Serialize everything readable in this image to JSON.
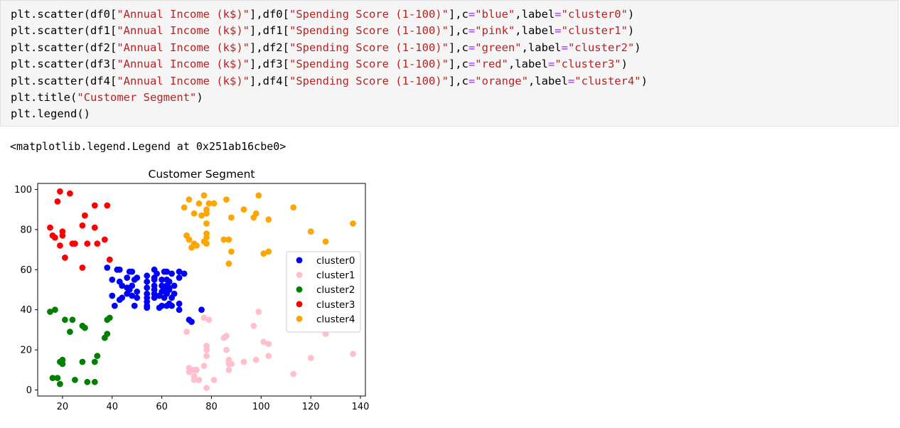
{
  "code": {
    "lines": [
      [
        {
          "t": "plt",
          "c": "t-var"
        },
        {
          "t": ".",
          "c": "t-punc"
        },
        {
          "t": "scatter",
          "c": "t-fn"
        },
        {
          "t": "(df0[",
          "c": "t-punc"
        },
        {
          "t": "\"Annual Income (k$)\"",
          "c": "t-str"
        },
        {
          "t": "],df0[",
          "c": "t-punc"
        },
        {
          "t": "\"Spending Score (1-100)\"",
          "c": "t-str"
        },
        {
          "t": "],c",
          "c": "t-punc"
        },
        {
          "t": "=",
          "c": "t-op"
        },
        {
          "t": "\"blue\"",
          "c": "t-str"
        },
        {
          "t": ",label",
          "c": "t-punc"
        },
        {
          "t": "=",
          "c": "t-op"
        },
        {
          "t": "\"cluster0\"",
          "c": "t-str"
        },
        {
          "t": ")",
          "c": "t-punc"
        }
      ],
      [
        {
          "t": "plt",
          "c": "t-var"
        },
        {
          "t": ".",
          "c": "t-punc"
        },
        {
          "t": "scatter",
          "c": "t-fn"
        },
        {
          "t": "(df1[",
          "c": "t-punc"
        },
        {
          "t": "\"Annual Income (k$)\"",
          "c": "t-str"
        },
        {
          "t": "],df1[",
          "c": "t-punc"
        },
        {
          "t": "\"Spending Score (1-100)\"",
          "c": "t-str"
        },
        {
          "t": "],c",
          "c": "t-punc"
        },
        {
          "t": "=",
          "c": "t-op"
        },
        {
          "t": "\"pink\"",
          "c": "t-str"
        },
        {
          "t": ",label",
          "c": "t-punc"
        },
        {
          "t": "=",
          "c": "t-op"
        },
        {
          "t": "\"cluster1\"",
          "c": "t-str"
        },
        {
          "t": ")",
          "c": "t-punc"
        }
      ],
      [
        {
          "t": "plt",
          "c": "t-var"
        },
        {
          "t": ".",
          "c": "t-punc"
        },
        {
          "t": "scatter",
          "c": "t-fn"
        },
        {
          "t": "(df2[",
          "c": "t-punc"
        },
        {
          "t": "\"Annual Income (k$)\"",
          "c": "t-str"
        },
        {
          "t": "],df2[",
          "c": "t-punc"
        },
        {
          "t": "\"Spending Score (1-100)\"",
          "c": "t-str"
        },
        {
          "t": "],c",
          "c": "t-punc"
        },
        {
          "t": "=",
          "c": "t-op"
        },
        {
          "t": "\"green\"",
          "c": "t-str"
        },
        {
          "t": ",label",
          "c": "t-punc"
        },
        {
          "t": "=",
          "c": "t-op"
        },
        {
          "t": "\"cluster2\"",
          "c": "t-str"
        },
        {
          "t": ")",
          "c": "t-punc"
        }
      ],
      [
        {
          "t": "plt",
          "c": "t-var"
        },
        {
          "t": ".",
          "c": "t-punc"
        },
        {
          "t": "scatter",
          "c": "t-fn"
        },
        {
          "t": "(df3[",
          "c": "t-punc"
        },
        {
          "t": "\"Annual Income (k$)\"",
          "c": "t-str"
        },
        {
          "t": "],df3[",
          "c": "t-punc"
        },
        {
          "t": "\"Spending Score (1-100)\"",
          "c": "t-str"
        },
        {
          "t": "],c",
          "c": "t-punc"
        },
        {
          "t": "=",
          "c": "t-op"
        },
        {
          "t": "\"red\"",
          "c": "t-str"
        },
        {
          "t": ",label",
          "c": "t-punc"
        },
        {
          "t": "=",
          "c": "t-op"
        },
        {
          "t": "\"cluster3\"",
          "c": "t-str"
        },
        {
          "t": ")",
          "c": "t-punc"
        }
      ],
      [
        {
          "t": "plt",
          "c": "t-var"
        },
        {
          "t": ".",
          "c": "t-punc"
        },
        {
          "t": "scatter",
          "c": "t-fn"
        },
        {
          "t": "(df4[",
          "c": "t-punc"
        },
        {
          "t": "\"Annual Income (k$)\"",
          "c": "t-str"
        },
        {
          "t": "],df4[",
          "c": "t-punc"
        },
        {
          "t": "\"Spending Score (1-100)\"",
          "c": "t-str"
        },
        {
          "t": "],c",
          "c": "t-punc"
        },
        {
          "t": "=",
          "c": "t-op"
        },
        {
          "t": "\"orange\"",
          "c": "t-str"
        },
        {
          "t": ",label",
          "c": "t-punc"
        },
        {
          "t": "=",
          "c": "t-op"
        },
        {
          "t": "\"cluster4\"",
          "c": "t-str"
        },
        {
          "t": ")",
          "c": "t-punc"
        }
      ],
      [
        {
          "t": "plt",
          "c": "t-var"
        },
        {
          "t": ".",
          "c": "t-punc"
        },
        {
          "t": "title",
          "c": "t-fn"
        },
        {
          "t": "(",
          "c": "t-punc"
        },
        {
          "t": "\"Customer Segment\"",
          "c": "t-str"
        },
        {
          "t": ")",
          "c": "t-punc"
        }
      ],
      [
        {
          "t": "plt",
          "c": "t-var"
        },
        {
          "t": ".",
          "c": "t-punc"
        },
        {
          "t": "legend",
          "c": "t-fn"
        },
        {
          "t": "()",
          "c": "t-punc"
        }
      ]
    ]
  },
  "output": {
    "text": "<matplotlib.legend.Legend at 0x251ab16cbe0>"
  },
  "chart_data": {
    "type": "scatter",
    "title": "Customer Segment",
    "xlabel": "",
    "ylabel": "",
    "xlim": [
      10,
      142
    ],
    "ylim": [
      -3,
      103
    ],
    "xticks": [
      20,
      40,
      60,
      80,
      100,
      120,
      140
    ],
    "yticks": [
      0,
      20,
      40,
      60,
      80,
      100
    ],
    "grid": false,
    "legend_position": "center-right",
    "series": [
      {
        "name": "cluster0",
        "color": "#0000ff",
        "points": [
          [
            38,
            61
          ],
          [
            40,
            55
          ],
          [
            40,
            47
          ],
          [
            41,
            42
          ],
          [
            42,
            60
          ],
          [
            43,
            60
          ],
          [
            43,
            54
          ],
          [
            43,
            45
          ],
          [
            44,
            46
          ],
          [
            44,
            52
          ],
          [
            46,
            56
          ],
          [
            46,
            51
          ],
          [
            46,
            48
          ],
          [
            47,
            59
          ],
          [
            47,
            50
          ],
          [
            48,
            59
          ],
          [
            48,
            52
          ],
          [
            48,
            47
          ],
          [
            49,
            55
          ],
          [
            49,
            42
          ],
          [
            50,
            56
          ],
          [
            50,
            49
          ],
          [
            50,
            46
          ],
          [
            54,
            57
          ],
          [
            54,
            54
          ],
          [
            54,
            51
          ],
          [
            54,
            48
          ],
          [
            54,
            46
          ],
          [
            54,
            44
          ],
          [
            54,
            42
          ],
          [
            54,
            41
          ],
          [
            57,
            60
          ],
          [
            57,
            56
          ],
          [
            57,
            55
          ],
          [
            57,
            52
          ],
          [
            57,
            50
          ],
          [
            57,
            48
          ],
          [
            57,
            46
          ],
          [
            58,
            58
          ],
          [
            59,
            47
          ],
          [
            59,
            41
          ],
          [
            60,
            55
          ],
          [
            60,
            52
          ],
          [
            60,
            49
          ],
          [
            60,
            42
          ],
          [
            61,
            59
          ],
          [
            61,
            50
          ],
          [
            61,
            46
          ],
          [
            62,
            59
          ],
          [
            62,
            55
          ],
          [
            62,
            52
          ],
          [
            62,
            48
          ],
          [
            62,
            42
          ],
          [
            63,
            54
          ],
          [
            63,
            51
          ],
          [
            63,
            50
          ],
          [
            63,
            43
          ],
          [
            64,
            58
          ],
          [
            64,
            46
          ],
          [
            64,
            42
          ],
          [
            65,
            52
          ],
          [
            65,
            48
          ],
          [
            67,
            59
          ],
          [
            67,
            56
          ],
          [
            67,
            43
          ],
          [
            67,
            40
          ],
          [
            69,
            58
          ],
          [
            71,
            35
          ],
          [
            72,
            34
          ],
          [
            76,
            40
          ]
        ]
      },
      {
        "name": "cluster1",
        "color": "#ffc0cb",
        "points": [
          [
            70,
            29
          ],
          [
            71,
            11
          ],
          [
            71,
            9
          ],
          [
            73,
            5
          ],
          [
            73,
            7
          ],
          [
            73,
            10
          ],
          [
            74,
            10
          ],
          [
            75,
            5
          ],
          [
            77,
            12
          ],
          [
            77,
            36
          ],
          [
            78,
            1
          ],
          [
            78,
            17
          ],
          [
            78,
            20
          ],
          [
            78,
            22
          ],
          [
            79,
            35
          ],
          [
            81,
            5
          ],
          [
            85,
            26
          ],
          [
            86,
            20
          ],
          [
            86,
            27
          ],
          [
            87,
            10
          ],
          [
            87,
            13
          ],
          [
            87,
            15
          ],
          [
            88,
            13
          ],
          [
            93,
            14
          ],
          [
            97,
            32
          ],
          [
            98,
            15
          ],
          [
            99,
            39
          ],
          [
            101,
            24
          ],
          [
            103,
            17
          ],
          [
            103,
            23
          ],
          [
            113,
            8
          ],
          [
            120,
            16
          ],
          [
            126,
            28
          ],
          [
            137,
            18
          ]
        ]
      },
      {
        "name": "cluster2",
        "color": "#008000",
        "points": [
          [
            15,
            39
          ],
          [
            16,
            6
          ],
          [
            17,
            40
          ],
          [
            18,
            6
          ],
          [
            19,
            3
          ],
          [
            19,
            14
          ],
          [
            20,
            13
          ],
          [
            20,
            15
          ],
          [
            21,
            35
          ],
          [
            23,
            29
          ],
          [
            24,
            35
          ],
          [
            25,
            5
          ],
          [
            28,
            14
          ],
          [
            28,
            32
          ],
          [
            29,
            31
          ],
          [
            30,
            4
          ],
          [
            33,
            4
          ],
          [
            33,
            14
          ],
          [
            34,
            17
          ],
          [
            37,
            26
          ],
          [
            38,
            35
          ],
          [
            38,
            28
          ],
          [
            39,
            36
          ]
        ]
      },
      {
        "name": "cluster3",
        "color": "#ff0000",
        "points": [
          [
            15,
            81
          ],
          [
            16,
            77
          ],
          [
            17,
            76
          ],
          [
            18,
            94
          ],
          [
            19,
            72
          ],
          [
            19,
            99
          ],
          [
            20,
            77
          ],
          [
            20,
            79
          ],
          [
            21,
            66
          ],
          [
            23,
            98
          ],
          [
            24,
            73
          ],
          [
            25,
            73
          ],
          [
            28,
            82
          ],
          [
            28,
            61
          ],
          [
            29,
            87
          ],
          [
            30,
            73
          ],
          [
            33,
            92
          ],
          [
            33,
            81
          ],
          [
            34,
            73
          ],
          [
            37,
            75
          ],
          [
            38,
            92
          ],
          [
            39,
            65
          ]
        ]
      },
      {
        "name": "cluster4",
        "color": "#ffa500",
        "points": [
          [
            69,
            91
          ],
          [
            70,
            77
          ],
          [
            71,
            95
          ],
          [
            71,
            75
          ],
          [
            72,
            71
          ],
          [
            73,
            88
          ],
          [
            73,
            73
          ],
          [
            74,
            72
          ],
          [
            75,
            93
          ],
          [
            76,
            87
          ],
          [
            77,
            97
          ],
          [
            77,
            74
          ],
          [
            78,
            90
          ],
          [
            78,
            88
          ],
          [
            78,
            76
          ],
          [
            78,
            78
          ],
          [
            78,
            73
          ],
          [
            78,
            83
          ],
          [
            79,
            93
          ],
          [
            81,
            93
          ],
          [
            85,
            75
          ],
          [
            86,
            95
          ],
          [
            87,
            63
          ],
          [
            87,
            75
          ],
          [
            88,
            69
          ],
          [
            88,
            86
          ],
          [
            93,
            90
          ],
          [
            97,
            86
          ],
          [
            98,
            88
          ],
          [
            99,
            97
          ],
          [
            101,
            68
          ],
          [
            103,
            85
          ],
          [
            103,
            69
          ],
          [
            113,
            91
          ],
          [
            120,
            79
          ],
          [
            126,
            74
          ],
          [
            137,
            83
          ]
        ]
      }
    ]
  }
}
